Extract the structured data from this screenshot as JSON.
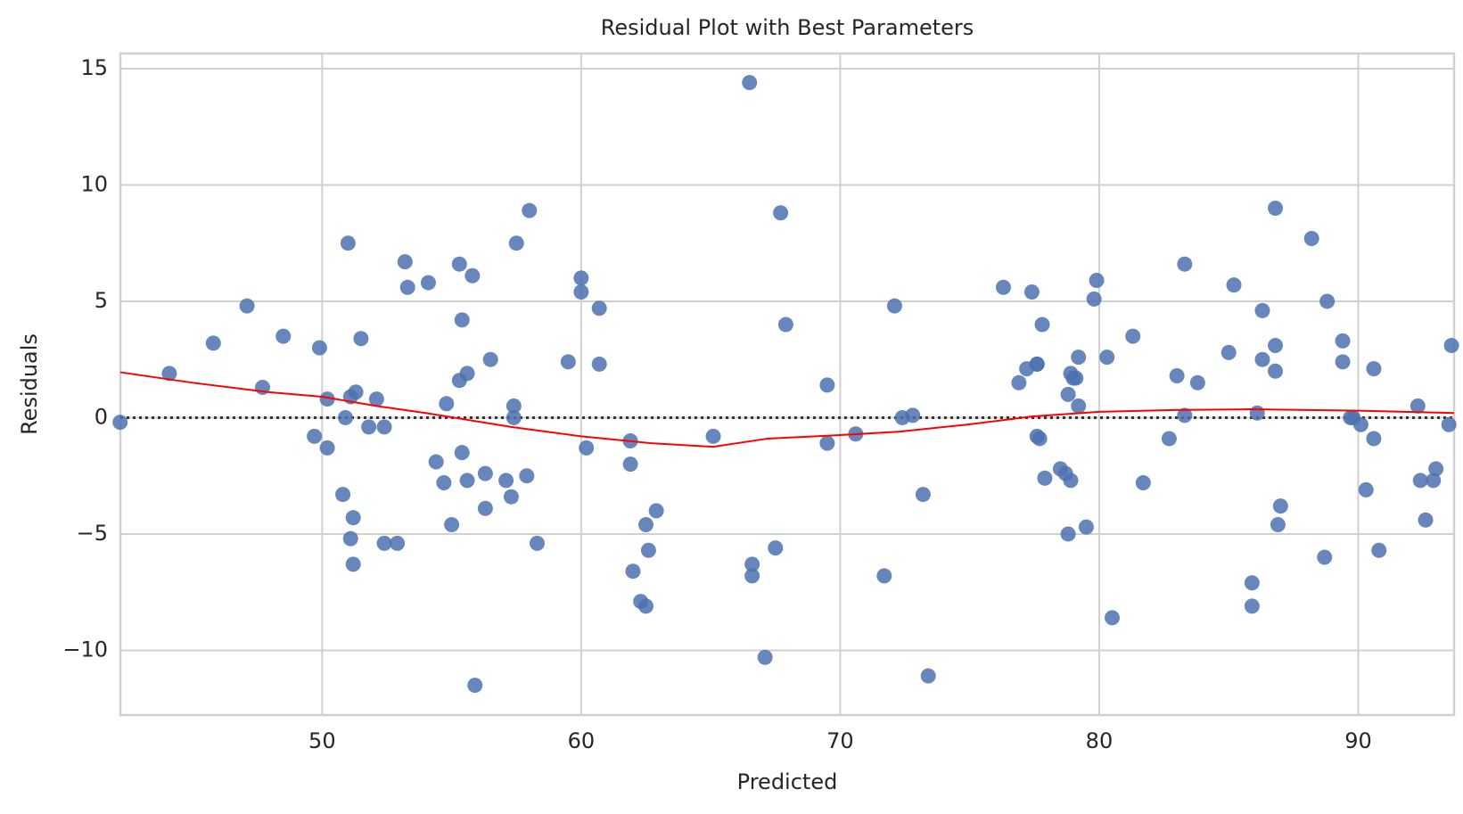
{
  "chart_data": {
    "type": "scatter",
    "title": "Residual Plot with Best Parameters",
    "x_label": "Predicted",
    "y_label": "Residuals",
    "xlim": [
      42.21,
      93.7
    ],
    "ylim": [
      -12.78,
      15.65
    ],
    "xticks": [
      50,
      60,
      70,
      80,
      90
    ],
    "yticks": [
      {
        "value": -10,
        "label": "−10"
      },
      {
        "value": -5,
        "label": "−5"
      },
      0,
      5,
      10,
      15
    ],
    "grid": true,
    "series": [
      {
        "color": "#4c72b0",
        "x": [
          42.2,
          44.1,
          45.8,
          47.1,
          47.7,
          48.5,
          49.7,
          49.9,
          50.2,
          50.2,
          50.9,
          50.8,
          51.0,
          51.1,
          51.1,
          51.2,
          51.2,
          51.3,
          51.5,
          51.8,
          52.1,
          52.4,
          52.4,
          52.9,
          53.2,
          53.3,
          54.1,
          54.4,
          54.7,
          54.8,
          55.0,
          55.3,
          55.4,
          55.4,
          55.3,
          55.6,
          55.6,
          55.8,
          55.9,
          56.3,
          56.3,
          56.5,
          57.1,
          57.3,
          57.4,
          57.4,
          57.5,
          57.9,
          58.0,
          58.3,
          59.5,
          60.0,
          60.0,
          60.2,
          60.7,
          60.7,
          61.9,
          61.9,
          62.0,
          62.3,
          62.5,
          62.5,
          62.6,
          62.9,
          65.1,
          66.5,
          66.6,
          66.6,
          67.1,
          67.5,
          67.7,
          67.9,
          69.5,
          69.5,
          70.6,
          71.7,
          72.1,
          72.4,
          72.8,
          73.2,
          73.4,
          76.3,
          76.9,
          77.2,
          77.4,
          77.6,
          77.6,
          77.6,
          77.7,
          77.8,
          77.9,
          78.5,
          78.7,
          78.8,
          78.8,
          78.9,
          78.9,
          79.0,
          79.1,
          79.2,
          79.2,
          79.5,
          79.8,
          79.9,
          80.3,
          80.5,
          81.3,
          81.7,
          82.7,
          83.0,
          83.3,
          83.3,
          83.8,
          85.0,
          85.2,
          85.9,
          85.9,
          86.1,
          86.3,
          86.3,
          86.8,
          86.8,
          86.8,
          86.9,
          87.0,
          88.2,
          88.7,
          88.8,
          89.4,
          89.4,
          89.7,
          89.8,
          90.1,
          90.3,
          90.6,
          90.6,
          90.8,
          92.3,
          92.4,
          92.6,
          92.9,
          93.0,
          93.5,
          93.6
        ],
        "values": [
          -0.2,
          1.9,
          3.2,
          4.8,
          1.3,
          3.5,
          -0.8,
          3.0,
          0.8,
          -1.3,
          0.0,
          -3.3,
          7.5,
          0.9,
          -5.2,
          -4.3,
          -6.3,
          1.1,
          3.4,
          -0.4,
          0.8,
          -0.4,
          -5.4,
          -5.4,
          6.7,
          5.6,
          5.8,
          -1.9,
          -2.8,
          0.6,
          -4.6,
          6.6,
          4.2,
          -1.5,
          1.6,
          1.9,
          -2.7,
          6.1,
          -11.5,
          -2.4,
          -3.9,
          2.5,
          -2.7,
          -3.4,
          0.5,
          0.0,
          7.5,
          -2.5,
          8.9,
          -5.4,
          2.4,
          6.0,
          5.4,
          -1.3,
          4.7,
          2.3,
          -1.0,
          -2.0,
          -6.6,
          -7.9,
          -8.1,
          -4.6,
          -5.7,
          -4.0,
          -0.8,
          14.4,
          -6.3,
          -6.8,
          -10.3,
          -5.6,
          8.8,
          4.0,
          1.4,
          -1.1,
          -0.7,
          -6.8,
          4.8,
          0.0,
          0.1,
          -3.3,
          -11.1,
          5.6,
          1.5,
          2.1,
          5.4,
          2.3,
          2.3,
          -0.8,
          -0.9,
          4.0,
          -2.6,
          -2.2,
          -2.4,
          -5.0,
          1.0,
          1.9,
          -2.7,
          1.7,
          1.7,
          0.5,
          2.6,
          -4.7,
          5.1,
          5.9,
          2.6,
          -8.6,
          3.5,
          -2.8,
          -0.9,
          1.8,
          6.6,
          0.1,
          1.5,
          2.8,
          5.7,
          -7.1,
          -8.1,
          0.2,
          4.6,
          2.5,
          3.1,
          9.0,
          2.0,
          -4.6,
          -3.8,
          7.7,
          -6.0,
          5.0,
          3.3,
          2.4,
          0.0,
          0.0,
          -0.3,
          -3.1,
          2.1,
          -0.9,
          -5.7,
          0.5,
          -2.7,
          -4.4,
          -2.7,
          -2.2,
          -0.3,
          3.1
        ]
      },
      {
        "color": "#ff0000",
        "x": [
          42.21,
          45.0,
          47.9,
          50.0,
          52.1,
          54.0,
          57.3,
          60.0,
          62.7,
          65.1,
          67.2,
          70.0,
          72.3,
          74.9,
          77.4,
          80.0,
          82.9,
          85.8,
          90.0,
          93.7
        ],
        "values": [
          1.95,
          1.5,
          1.1,
          0.9,
          0.5,
          0.2,
          -0.4,
          -0.8,
          -1.1,
          -1.25,
          -0.9,
          -0.75,
          -0.6,
          -0.3,
          0.05,
          0.25,
          0.33,
          0.36,
          0.3,
          0.2
        ]
      }
    ]
  }
}
